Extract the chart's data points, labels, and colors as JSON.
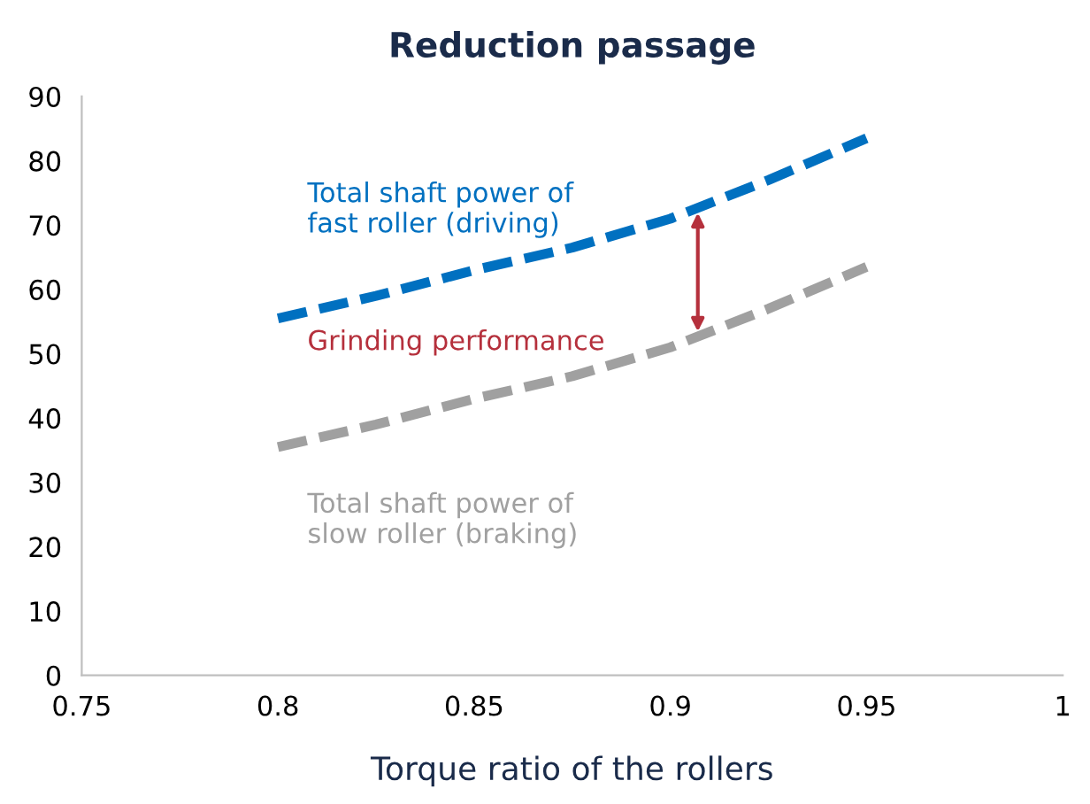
{
  "chart_data": {
    "type": "line",
    "title": "Reduction passage",
    "xlabel": "Torque ratio of the rollers",
    "x": [
      0.8,
      0.825,
      0.85,
      0.875,
      0.9,
      0.925,
      0.95
    ],
    "series": [
      {
        "name": "Total shaft power of fast roller (driving)",
        "color": "#0070c0",
        "values": [
          55.5,
          59,
          63,
          66.5,
          71,
          77,
          83.5
        ]
      },
      {
        "name": "Total shaft power of slow roller (braking)",
        "color": "#a0a0a0",
        "values": [
          35.5,
          39,
          43,
          46.5,
          51,
          57,
          63.5
        ]
      }
    ],
    "annotations": [
      "Grinding performance"
    ],
    "xlim": [
      0.75,
      1
    ],
    "xticks": [
      0.75,
      0.8,
      0.85,
      0.9,
      0.95,
      1
    ],
    "ylim": [
      0,
      90
    ],
    "yticks": [
      0,
      10,
      20,
      30,
      40,
      50,
      60,
      70,
      80,
      90
    ],
    "line_style": "dashed",
    "marker": "none",
    "grid": false,
    "legend": false
  }
}
